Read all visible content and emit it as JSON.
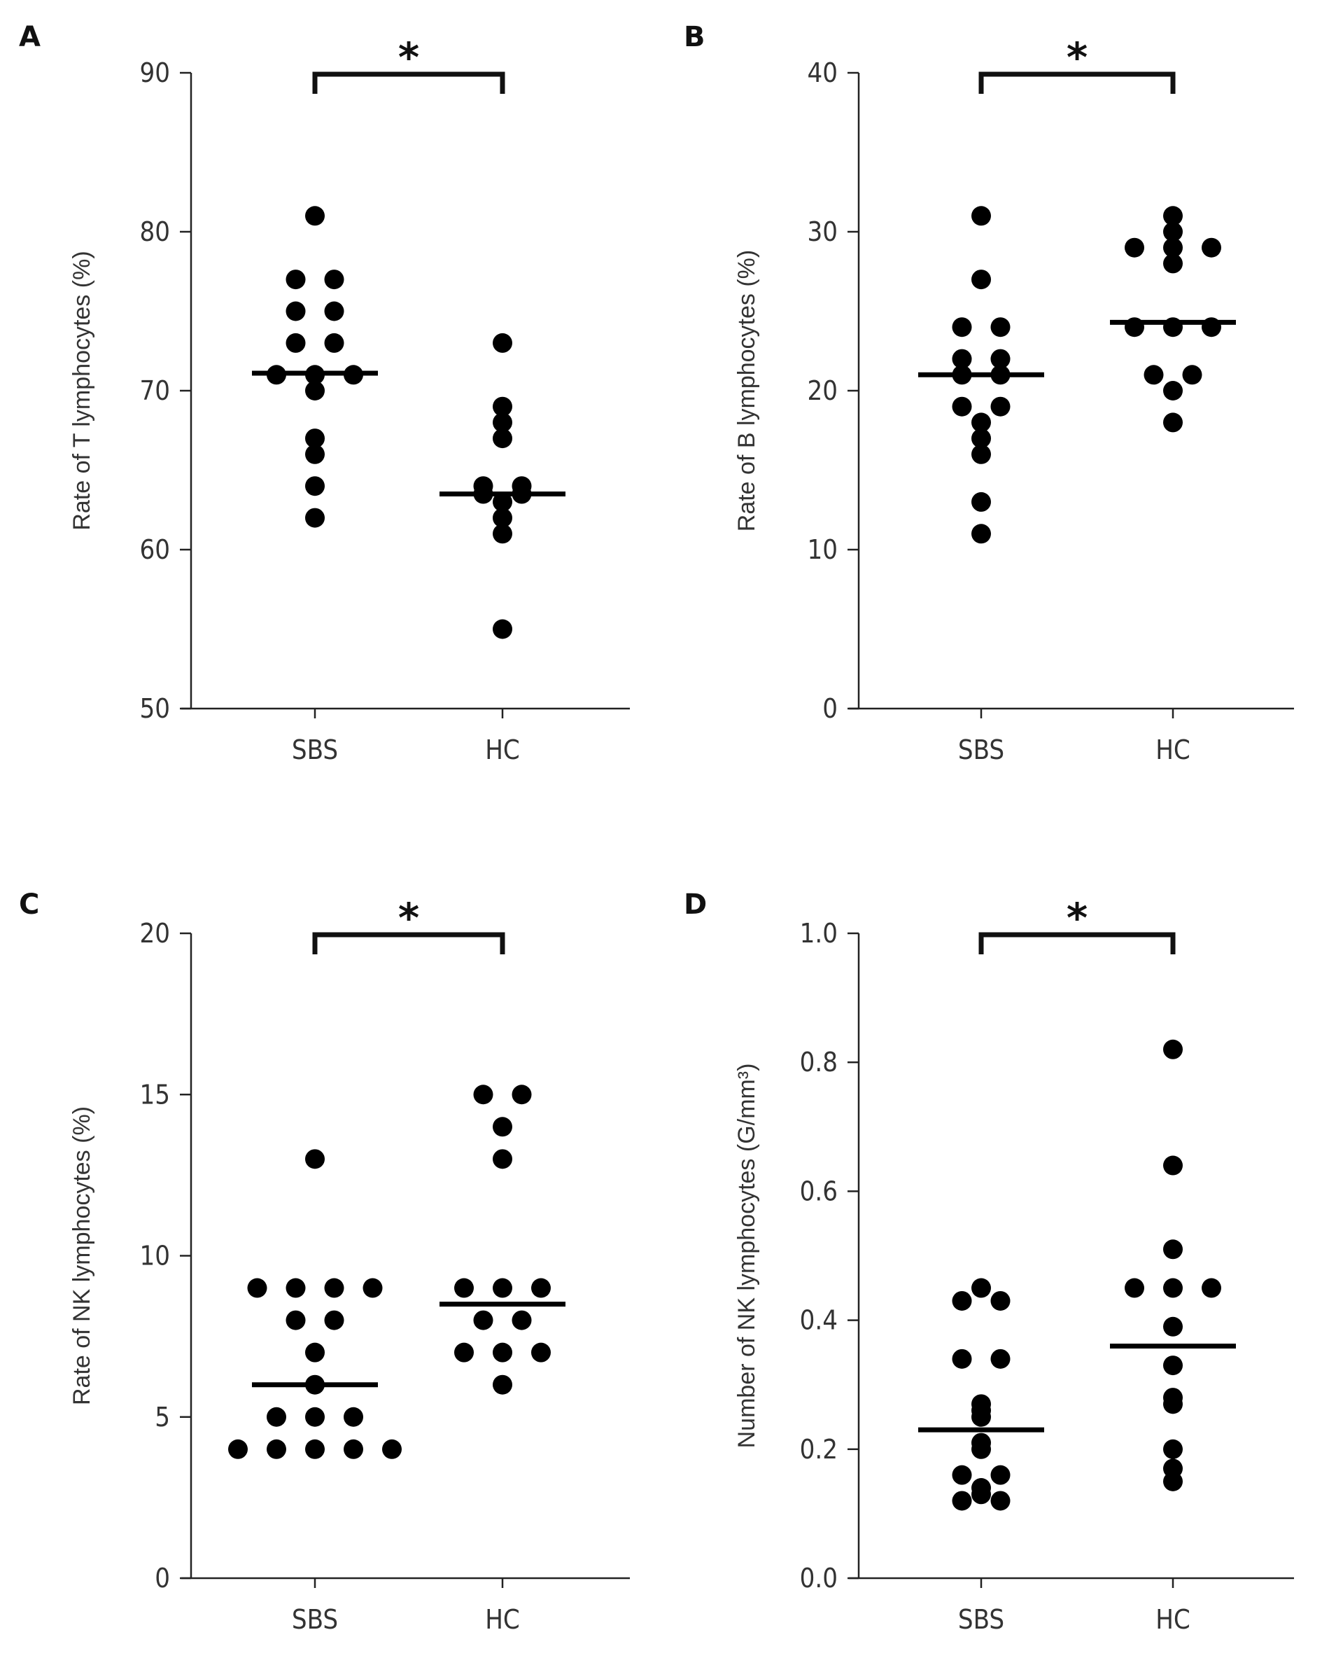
{
  "chart_data": [
    {
      "type": "scatter",
      "panel_label": "A",
      "ylabel": "Rate of T lymphocytes (%)",
      "ylim": [
        50,
        90
      ],
      "yticks": [
        "50",
        "60",
        "70",
        "80",
        "90"
      ],
      "yticks_values": [
        50,
        60,
        70,
        80,
        90
      ],
      "categories": [
        "SBS",
        "HC"
      ],
      "series": [
        {
          "name": "SBS",
          "values": [
            81,
            77,
            77,
            75,
            75,
            73,
            73,
            71,
            71,
            71,
            70,
            67,
            66,
            64,
            62
          ],
          "median": 71.1
        },
        {
          "name": "HC",
          "values": [
            73,
            69,
            68,
            67,
            64,
            64,
            63.5,
            63.5,
            63,
            62,
            61,
            55
          ],
          "median": 63.5
        }
      ],
      "significance": "*"
    },
    {
      "type": "scatter",
      "panel_label": "B",
      "ylabel": "Rate of B lymphocytes (%)",
      "ylim": [
        0,
        40
      ],
      "yticks": [
        "0",
        "10",
        "20",
        "30",
        "40"
      ],
      "yticks_values": [
        0,
        10,
        20,
        30,
        40
      ],
      "categories": [
        "SBS",
        "HC"
      ],
      "series": [
        {
          "name": "SBS",
          "values": [
            31,
            27,
            24,
            24,
            22,
            22,
            21,
            21,
            19,
            19,
            18,
            17,
            16,
            13,
            11
          ],
          "median": 21
        },
        {
          "name": "HC",
          "values": [
            31,
            30,
            29,
            29,
            28,
            29,
            24,
            24,
            24,
            21,
            21,
            20,
            18
          ],
          "median": 24.3
        }
      ],
      "significance": "*"
    },
    {
      "type": "scatter",
      "panel_label": "C",
      "ylabel": "Rate of NK lymphocytes (%)",
      "ylim": [
        0,
        20
      ],
      "yticks": [
        "0",
        "5",
        "10",
        "15",
        "20"
      ],
      "yticks_values": [
        0,
        5,
        10,
        15,
        20
      ],
      "categories": [
        "SBS",
        "HC"
      ],
      "series": [
        {
          "name": "SBS",
          "values": [
            13,
            9,
            9,
            9,
            9,
            8,
            8,
            7,
            6,
            5,
            5,
            5,
            4,
            4,
            4,
            4,
            4
          ],
          "median": 6
        },
        {
          "name": "HC",
          "values": [
            15,
            15,
            14,
            13,
            9,
            9,
            9,
            8,
            8,
            7,
            7,
            7,
            6
          ],
          "median": 8.5
        }
      ],
      "significance": "*"
    },
    {
      "type": "scatter",
      "panel_label": "D",
      "ylabel": "Number of NK lymphocytes (G/mm³)",
      "ylim": [
        0.0,
        1.0
      ],
      "yticks": [
        "0.0",
        "0.2",
        "0.4",
        "0.6",
        "0.8",
        "1.0"
      ],
      "yticks_values": [
        0.0,
        0.2,
        0.4,
        0.6,
        0.8,
        1.0
      ],
      "categories": [
        "SBS",
        "HC"
      ],
      "series": [
        {
          "name": "SBS",
          "values": [
            0.45,
            0.43,
            0.43,
            0.34,
            0.34,
            0.27,
            0.26,
            0.25,
            0.21,
            0.2,
            0.16,
            0.16,
            0.14,
            0.13,
            0.12,
            0.12
          ],
          "median": 0.23
        },
        {
          "name": "HC",
          "values": [
            0.82,
            0.64,
            0.51,
            0.45,
            0.45,
            0.45,
            0.39,
            0.33,
            0.28,
            0.27,
            0.2,
            0.17,
            0.15
          ],
          "median": 0.36
        }
      ],
      "significance": "*"
    }
  ]
}
